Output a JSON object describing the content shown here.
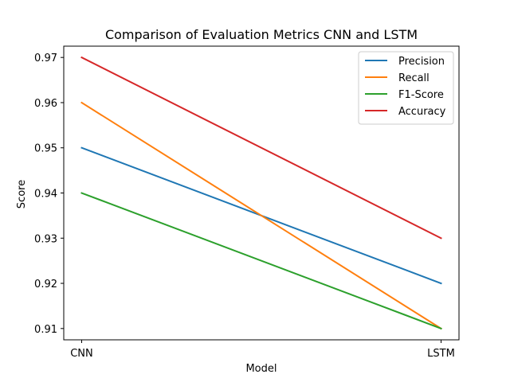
{
  "chart_data": {
    "type": "line",
    "title": "Comparison of Evaluation Metrics CNN and LSTM",
    "xlabel": "Model",
    "ylabel": "Score",
    "categories": [
      "CNN",
      "LSTM"
    ],
    "ylim": [
      0.9075,
      0.9725
    ],
    "yticks": [
      "0.91",
      "0.92",
      "0.93",
      "0.94",
      "0.95",
      "0.96",
      "0.97"
    ],
    "grid": false,
    "legend_position": "top-right",
    "series": [
      {
        "name": "Precision",
        "values": [
          0.95,
          0.92
        ],
        "color": "#1f77b4"
      },
      {
        "name": "Recall",
        "values": [
          0.96,
          0.91
        ],
        "color": "#ff7f0e"
      },
      {
        "name": "F1-Score",
        "values": [
          0.94,
          0.91
        ],
        "color": "#2ca02c"
      },
      {
        "name": "Accuracy",
        "values": [
          0.97,
          0.93
        ],
        "color": "#d62728"
      }
    ]
  }
}
